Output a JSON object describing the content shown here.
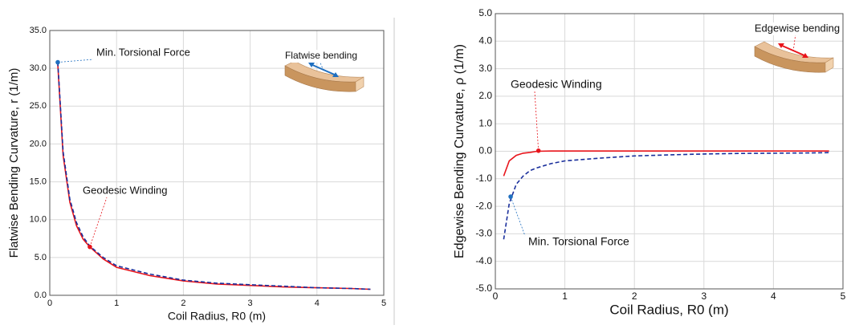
{
  "chart_data": [
    {
      "type": "line",
      "xlabel": "Coil Radius, R0 (m)",
      "ylabel": "Flatwise Bending Curvature, r (1/m)",
      "x": [
        0.12,
        0.2,
        0.3,
        0.4,
        0.5,
        0.6,
        0.8,
        1.0,
        1.5,
        2.0,
        2.5,
        3.0,
        3.5,
        4.0,
        4.5,
        4.8
      ],
      "series": [
        {
          "name": "Geodesic Winding",
          "color": "#e8141b",
          "line_style": "solid",
          "values": [
            30.5,
            18.5,
            12.3,
            9.2,
            7.4,
            6.4,
            4.8,
            3.7,
            2.6,
            1.9,
            1.5,
            1.3,
            1.1,
            1.0,
            0.9,
            0.8
          ]
        },
        {
          "name": "Min. Torsional Force",
          "color": "#1a2f9c",
          "line_style": "dashed",
          "values": [
            30.8,
            19.0,
            12.7,
            9.6,
            7.7,
            6.5,
            5.0,
            3.9,
            2.8,
            2.0,
            1.6,
            1.4,
            1.2,
            1.0,
            0.9,
            0.8
          ]
        }
      ],
      "annotations": [
        {
          "text": "Min. Torsional Force",
          "x": 0.12,
          "y": 30.8,
          "color": "#1f6fc0"
        },
        {
          "text": "Geodesic Winding",
          "x": 0.6,
          "y": 6.4,
          "color": "#e8141b"
        }
      ],
      "inset_label": "Flatwise bending",
      "inset_color": "#1f6fc0",
      "xlim": [
        0,
        5
      ],
      "xticks": [
        0,
        1,
        2,
        3,
        4,
        5
      ],
      "ylim": [
        0,
        35
      ],
      "yticks": [
        {
          "value": 0,
          "label": "0.0"
        },
        {
          "value": 5,
          "label": "5.0"
        },
        {
          "value": 10,
          "label": "10.0"
        },
        {
          "value": 15,
          "label": "15.0"
        },
        {
          "value": 20,
          "label": "20.0"
        },
        {
          "value": 25,
          "label": "25.0"
        },
        {
          "value": 30,
          "label": "30.0"
        },
        {
          "value": 35,
          "label": "35.0"
        }
      ],
      "grid": true
    },
    {
      "type": "line",
      "xlabel": "Coil Radius, R0 (m)",
      "ylabel": "Edgewise Bending Curvature, ρ (1/m)",
      "x": [
        0.12,
        0.2,
        0.3,
        0.4,
        0.5,
        0.6,
        0.8,
        1.0,
        1.5,
        2.0,
        2.5,
        3.0,
        3.5,
        4.0,
        4.5,
        4.8
      ],
      "series": [
        {
          "name": "Geodesic Winding",
          "color": "#e8141b",
          "line_style": "solid",
          "values": [
            -0.9,
            -0.35,
            -0.15,
            -0.07,
            -0.04,
            0.0,
            0.01,
            0.01,
            0.01,
            0.01,
            0.01,
            0.01,
            0.01,
            0.01,
            0.01,
            0.01
          ]
        },
        {
          "name": "Min. Torsional Force",
          "color": "#1a2f9c",
          "line_style": "dashed",
          "values": [
            -3.2,
            -1.9,
            -1.2,
            -0.9,
            -0.7,
            -0.6,
            -0.45,
            -0.35,
            -0.25,
            -0.17,
            -0.13,
            -0.1,
            -0.08,
            -0.07,
            -0.06,
            -0.05
          ]
        }
      ],
      "annotations": [
        {
          "text": "Geodesic Winding",
          "x": 0.62,
          "y": 0.02,
          "color": "#e8141b"
        },
        {
          "text": "Min. Torsional Force",
          "x": 0.22,
          "y": -1.65,
          "color": "#1f6fc0"
        }
      ],
      "inset_label": "Edgewise bending",
      "inset_color": "#e8141b",
      "xlim": [
        0,
        5
      ],
      "xticks": [
        0,
        1,
        2,
        3,
        4,
        5
      ],
      "ylim": [
        -5,
        5
      ],
      "yticks": [
        {
          "value": -5,
          "label": "-5.0"
        },
        {
          "value": -4,
          "label": "-4.0"
        },
        {
          "value": -3,
          "label": "-3.0"
        },
        {
          "value": -2,
          "label": "-2.0"
        },
        {
          "value": -1,
          "label": "-1.0"
        },
        {
          "value": 0,
          "label": "0.0"
        },
        {
          "value": 1,
          "label": "1.0"
        },
        {
          "value": 2,
          "label": "2.0"
        },
        {
          "value": 3,
          "label": "3.0"
        },
        {
          "value": 4,
          "label": "4.0"
        },
        {
          "value": 5,
          "label": "5.0"
        }
      ],
      "grid": true
    }
  ]
}
